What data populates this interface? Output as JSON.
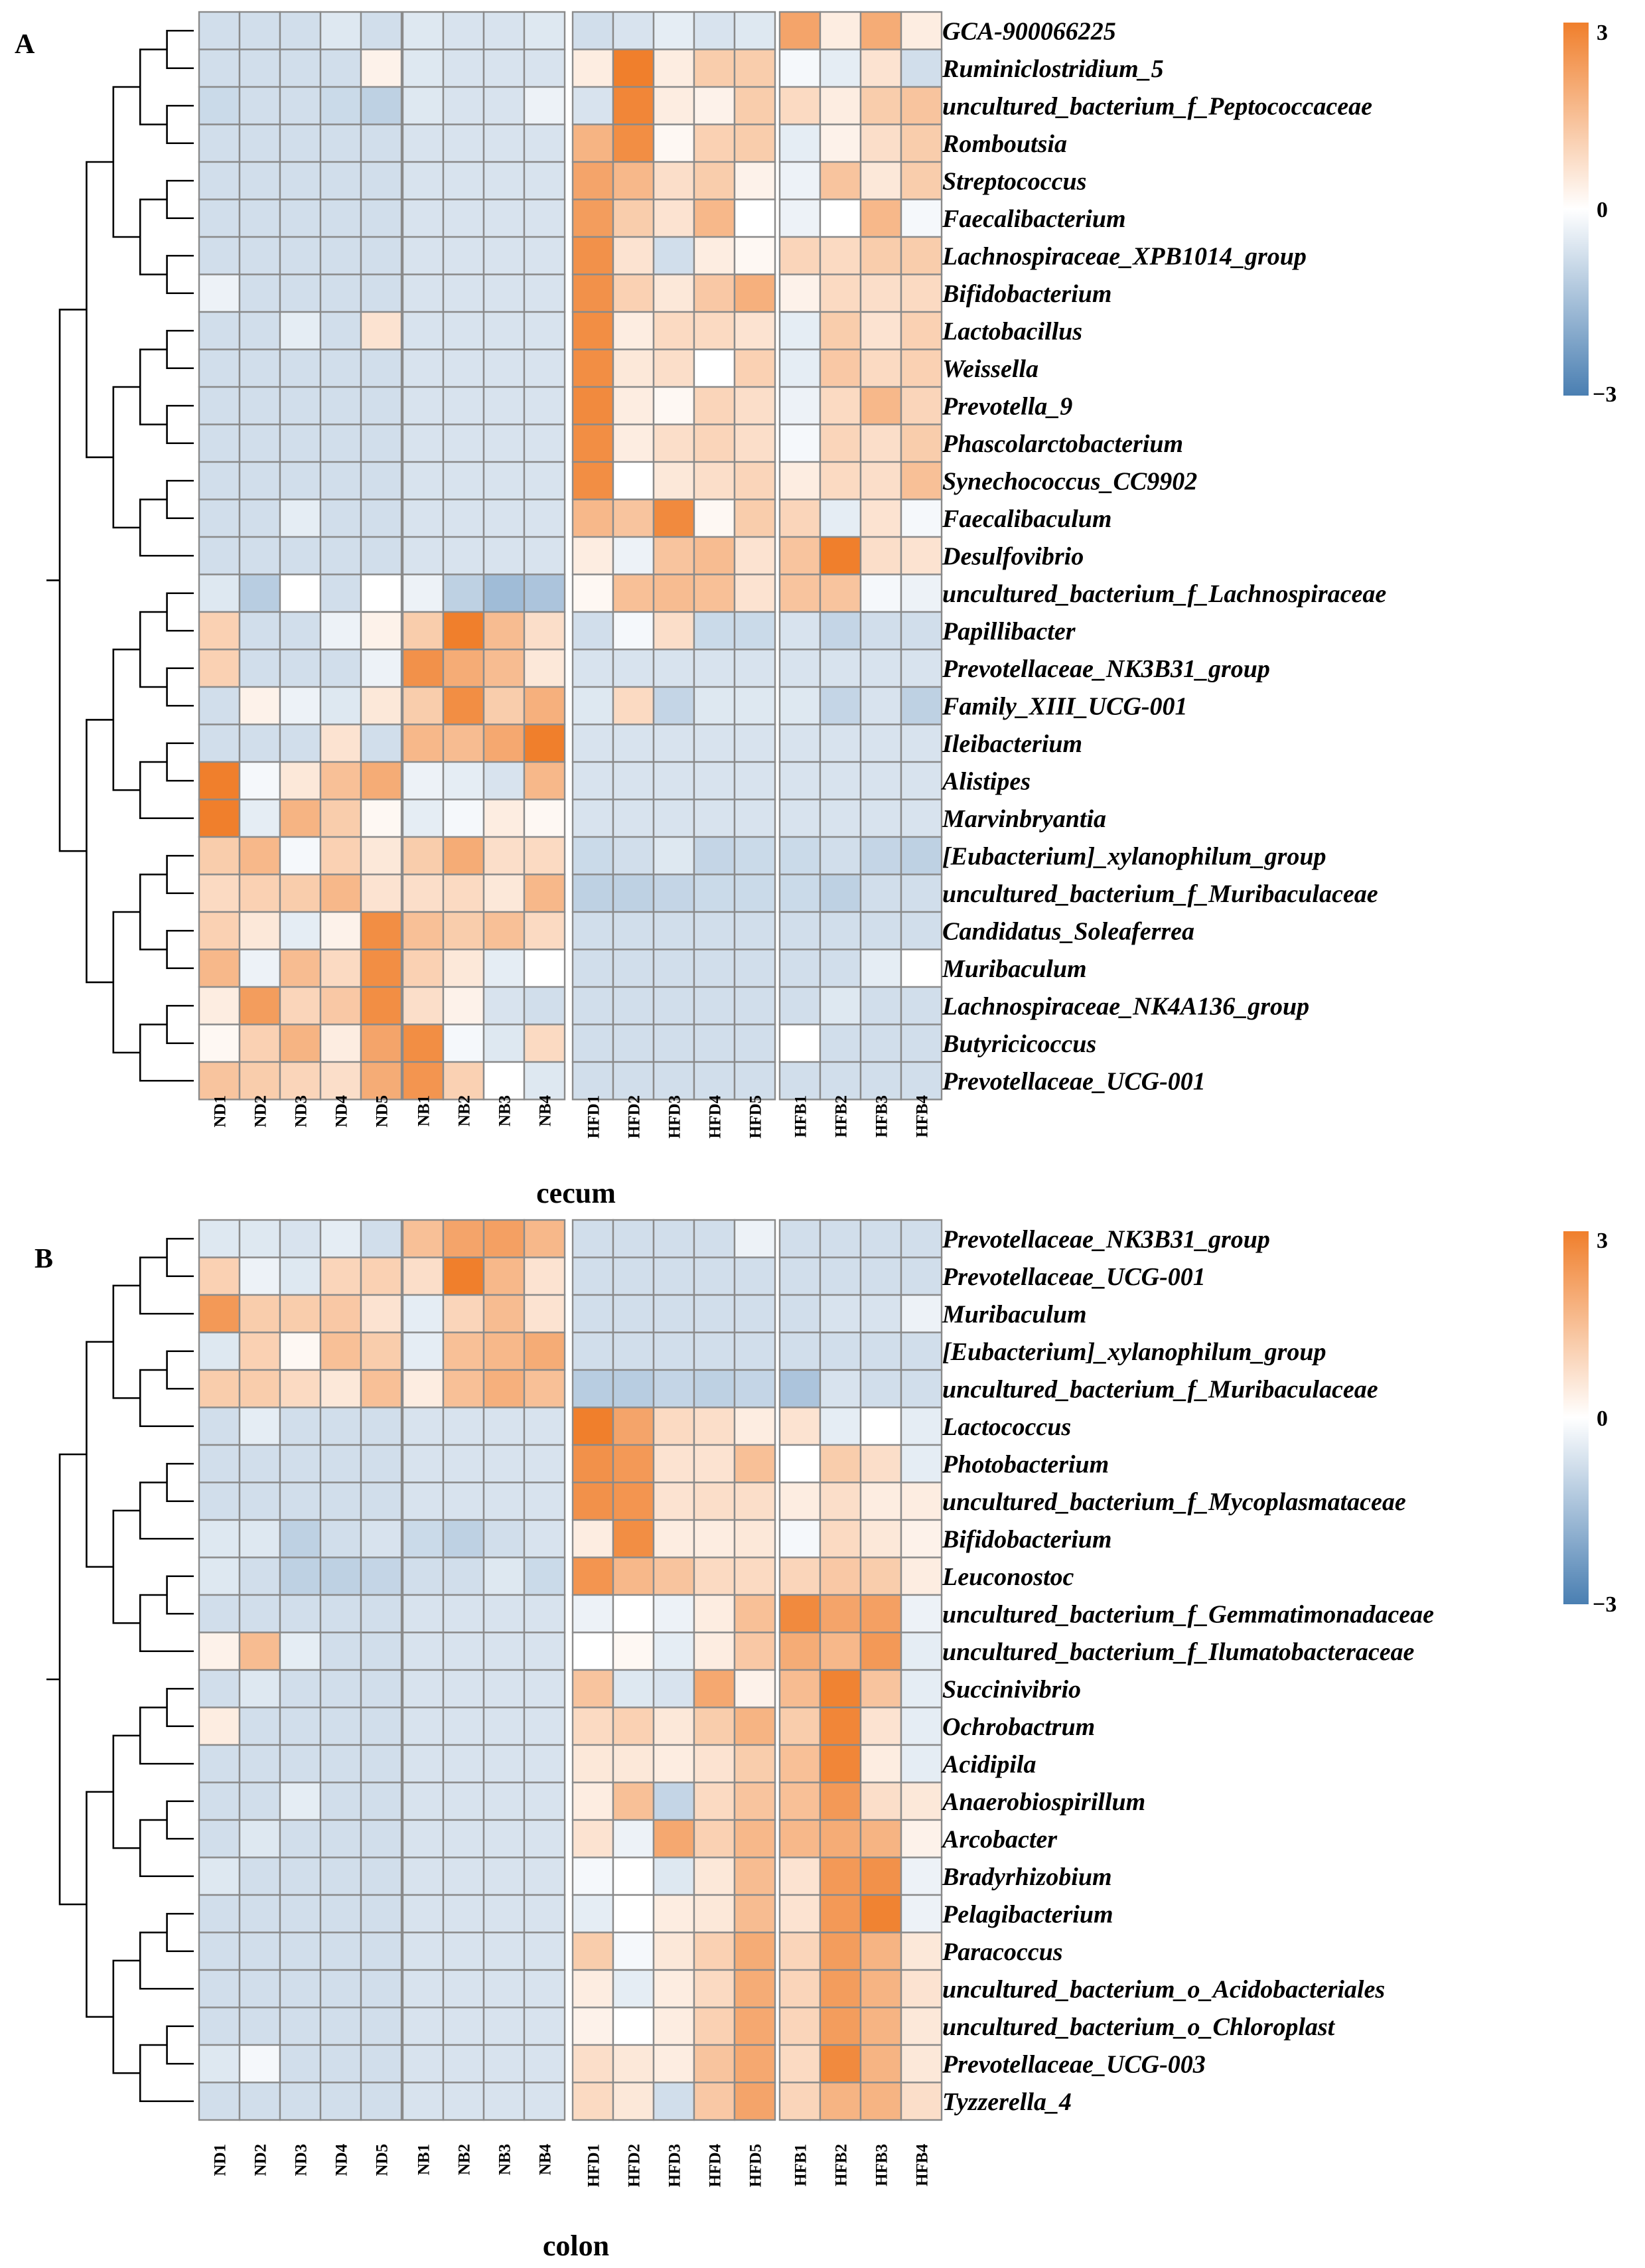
{
  "chart_data": [
    {
      "type": "heatmap",
      "panel": "A",
      "title": "cecum",
      "legend": {
        "max_label": "3",
        "mid_label": "0",
        "min_label": "−3",
        "range": [
          -3,
          3
        ]
      },
      "column_groups": [
        [
          "ND1",
          "ND2",
          "ND3",
          "ND4",
          "ND5"
        ],
        [
          "NB1",
          "NB2",
          "NB3",
          "NB4"
        ],
        [
          "HFD1",
          "HFD2",
          "HFD3",
          "HFD4",
          "HFD5"
        ],
        [
          "HFB1",
          "HFB2",
          "HFB3",
          "HFB4"
        ]
      ],
      "columns": [
        "ND1",
        "ND2",
        "ND3",
        "ND4",
        "ND5",
        "NB1",
        "NB2",
        "NB3",
        "NB4",
        "HFD1",
        "HFD2",
        "HFD3",
        "HFD4",
        "HFD5",
        "HFB1",
        "HFB2",
        "HFB3",
        "HFB4"
      ],
      "rows": [
        "GCA-900066225",
        "Ruminiclostridium_5",
        "uncultured_bacterium_f_Peptococcaceae",
        "Romboutsia",
        "Streptococcus",
        "Faecalibacterium",
        "Lachnospiraceae_XPB1014_group",
        "Bifidobacterium",
        "Lactobacillus",
        "Weissella",
        "Prevotella_9",
        "Phascolarctobacterium",
        "Synechococcus_CC9902",
        "Faecalibaculum",
        "Desulfovibrio",
        "uncultured_bacterium_f_Lachnospiraceae",
        "Papillibacter",
        "Prevotellaceae_NK3B31_group",
        "Family_XIII_UCG-001",
        "Ileibacterium",
        "Alistipes",
        "Marvinbryantia",
        "[Eubacterium]_xylanophilum_group",
        "uncultured_bacterium_f_Muribaculaceae",
        "Candidatus_Soleaferrea",
        "Muribaculum",
        "Lachnospiraceae_NK4A136_group",
        "Butyricicoccus",
        "Prevotellaceae_UCG-001"
      ],
      "values": [
        [
          -0.6,
          -0.6,
          -0.6,
          -0.4,
          -0.6,
          -0.4,
          -0.5,
          -0.5,
          -0.4,
          -0.6,
          -0.5,
          -0.3,
          -0.5,
          -0.4,
          2.0,
          0.3,
          1.8,
          0.3
        ],
        [
          -0.6,
          -0.6,
          -0.6,
          -0.6,
          0.2,
          -0.4,
          -0.5,
          -0.5,
          -0.5,
          0.3,
          3.0,
          0.3,
          1.0,
          1.0,
          -0.1,
          -0.3,
          0.5,
          -0.6
        ],
        [
          -0.7,
          -0.6,
          -0.6,
          -0.7,
          -0.9,
          -0.4,
          -0.5,
          -0.5,
          -0.2,
          -0.5,
          2.8,
          0.3,
          0.2,
          1.0,
          0.7,
          0.3,
          1.0,
          1.2
        ],
        [
          -0.6,
          -0.6,
          -0.6,
          -0.6,
          -0.6,
          -0.5,
          -0.5,
          -0.5,
          -0.5,
          1.6,
          2.6,
          0.1,
          0.9,
          1.0,
          -0.3,
          0.2,
          0.6,
          1.0
        ],
        [
          -0.6,
          -0.6,
          -0.6,
          -0.6,
          -0.6,
          -0.5,
          -0.5,
          -0.5,
          -0.5,
          2.0,
          1.5,
          0.6,
          1.0,
          0.2,
          -0.2,
          1.2,
          0.4,
          1.0
        ],
        [
          -0.6,
          -0.6,
          -0.6,
          -0.6,
          -0.6,
          -0.5,
          -0.5,
          -0.5,
          -0.5,
          2.2,
          1.0,
          0.5,
          1.5,
          0.0,
          -0.2,
          0.0,
          1.5,
          -0.1
        ],
        [
          -0.6,
          -0.6,
          -0.6,
          -0.6,
          -0.6,
          -0.5,
          -0.5,
          -0.5,
          -0.5,
          2.5,
          0.5,
          -0.6,
          0.3,
          0.1,
          0.8,
          0.7,
          1.0,
          1.0
        ],
        [
          -0.2,
          -0.6,
          -0.6,
          -0.6,
          -0.6,
          -0.5,
          -0.5,
          -0.5,
          -0.5,
          2.5,
          0.9,
          0.4,
          1.1,
          1.7,
          0.2,
          0.7,
          0.6,
          0.7
        ],
        [
          -0.6,
          -0.6,
          -0.3,
          -0.6,
          0.5,
          -0.5,
          -0.5,
          -0.5,
          -0.5,
          2.6,
          0.3,
          0.7,
          0.7,
          0.5,
          -0.3,
          1.0,
          0.5,
          0.9
        ],
        [
          -0.6,
          -0.6,
          -0.6,
          -0.6,
          -0.6,
          -0.5,
          -0.5,
          -0.5,
          -0.5,
          2.6,
          0.4,
          0.6,
          0.0,
          0.9,
          -0.3,
          1.1,
          0.7,
          0.9
        ],
        [
          -0.6,
          -0.6,
          -0.6,
          -0.6,
          -0.6,
          -0.5,
          -0.5,
          -0.5,
          -0.5,
          2.7,
          0.3,
          0.1,
          0.8,
          0.6,
          -0.2,
          0.7,
          1.5,
          0.8
        ],
        [
          -0.6,
          -0.6,
          -0.6,
          -0.6,
          -0.6,
          -0.5,
          -0.5,
          -0.5,
          -0.5,
          2.6,
          0.3,
          0.6,
          0.8,
          0.6,
          -0.1,
          0.8,
          0.6,
          1.0
        ],
        [
          -0.6,
          -0.6,
          -0.6,
          -0.6,
          -0.6,
          -0.5,
          -0.5,
          -0.5,
          -0.5,
          2.6,
          0.0,
          0.4,
          0.6,
          0.8,
          0.3,
          0.7,
          0.6,
          1.3
        ],
        [
          -0.6,
          -0.6,
          -0.3,
          -0.6,
          -0.6,
          -0.5,
          -0.5,
          -0.5,
          -0.5,
          1.5,
          1.2,
          2.7,
          0.1,
          1.0,
          0.8,
          -0.3,
          0.5,
          -0.1
        ],
        [
          -0.6,
          -0.6,
          -0.6,
          -0.6,
          -0.6,
          -0.5,
          -0.5,
          -0.5,
          -0.5,
          0.3,
          -0.2,
          1.2,
          1.4,
          0.5,
          1.2,
          3.0,
          0.6,
          0.5
        ],
        [
          -0.4,
          -1.0,
          0.0,
          -0.6,
          0.0,
          -0.2,
          -0.9,
          -1.4,
          -1.2,
          0.1,
          1.3,
          1.4,
          1.3,
          0.5,
          1.2,
          1.2,
          -0.1,
          -0.2
        ],
        [
          0.9,
          -0.6,
          -0.6,
          -0.2,
          0.2,
          1.0,
          3.0,
          1.4,
          0.6,
          -0.6,
          -0.1,
          0.6,
          -0.7,
          -0.7,
          -0.5,
          -0.8,
          -0.6,
          -0.6
        ],
        [
          0.9,
          -0.6,
          -0.6,
          -0.6,
          -0.2,
          2.5,
          1.8,
          1.4,
          0.4,
          -0.5,
          -0.5,
          -0.5,
          -0.5,
          -0.5,
          -0.5,
          -0.5,
          -0.5,
          -0.5
        ],
        [
          -0.6,
          0.2,
          -0.2,
          -0.4,
          0.4,
          1.0,
          2.6,
          1.0,
          1.7,
          -0.4,
          0.7,
          -0.8,
          -0.4,
          -0.4,
          -0.4,
          -0.8,
          -0.5,
          -0.9
        ],
        [
          -0.6,
          -0.6,
          -0.6,
          0.5,
          -0.6,
          1.5,
          1.4,
          1.9,
          3.0,
          -0.5,
          -0.5,
          -0.5,
          -0.5,
          -0.5,
          -0.5,
          -0.5,
          -0.5,
          -0.5
        ],
        [
          3.0,
          -0.1,
          0.4,
          1.3,
          1.8,
          -0.2,
          -0.3,
          -0.5,
          1.5,
          -0.5,
          -0.5,
          -0.5,
          -0.5,
          -0.5,
          -0.5,
          -0.5,
          -0.5,
          -0.5
        ],
        [
          3.0,
          -0.3,
          1.6,
          1.0,
          0.1,
          -0.3,
          -0.1,
          0.3,
          0.1,
          -0.5,
          -0.5,
          -0.5,
          -0.5,
          -0.5,
          -0.5,
          -0.5,
          -0.5,
          -0.5
        ],
        [
          1.0,
          1.5,
          -0.1,
          0.9,
          0.4,
          1.0,
          1.8,
          0.6,
          0.7,
          -0.7,
          -0.6,
          -0.4,
          -0.8,
          -0.7,
          -0.7,
          -0.6,
          -0.8,
          -0.9
        ],
        [
          0.7,
          0.9,
          1.0,
          1.5,
          0.5,
          0.6,
          0.7,
          0.4,
          1.5,
          -0.9,
          -0.9,
          -0.8,
          -0.7,
          -0.7,
          -0.7,
          -0.9,
          -0.6,
          -0.6
        ],
        [
          0.9,
          0.4,
          -0.3,
          0.2,
          2.6,
          1.3,
          1.0,
          1.3,
          0.7,
          -0.6,
          -0.6,
          -0.6,
          -0.6,
          -0.6,
          -0.6,
          -0.6,
          -0.6,
          -0.6
        ],
        [
          1.5,
          -0.2,
          1.4,
          0.7,
          2.6,
          0.9,
          0.4,
          -0.3,
          0.0,
          -0.6,
          -0.6,
          -0.6,
          -0.6,
          -0.6,
          -0.6,
          -0.6,
          -0.3,
          0.0
        ],
        [
          0.3,
          2.2,
          0.8,
          1.1,
          2.6,
          0.6,
          0.2,
          -0.5,
          -0.6,
          -0.6,
          -0.6,
          -0.6,
          -0.6,
          -0.6,
          -0.6,
          -0.4,
          -0.6,
          -0.6
        ],
        [
          0.1,
          0.9,
          1.6,
          0.3,
          2.0,
          2.6,
          -0.1,
          -0.4,
          0.7,
          -0.6,
          -0.6,
          -0.6,
          -0.6,
          -0.6,
          0.0,
          -0.6,
          -0.6,
          -0.6
        ],
        [
          1.2,
          1.0,
          0.8,
          0.6,
          1.8,
          2.4,
          0.9,
          0.0,
          -0.4,
          -0.6,
          -0.6,
          -0.6,
          -0.6,
          -0.6,
          -0.6,
          -0.6,
          -0.6,
          -0.6
        ]
      ]
    },
    {
      "type": "heatmap",
      "panel": "B",
      "title": "colon",
      "legend": {
        "max_label": "3",
        "mid_label": "0",
        "min_label": "−3",
        "range": [
          -3,
          3
        ]
      },
      "column_groups": [
        [
          "ND1",
          "ND2",
          "ND3",
          "ND4",
          "ND5"
        ],
        [
          "NB1",
          "NB2",
          "NB3",
          "NB4"
        ],
        [
          "HFD1",
          "HFD2",
          "HFD3",
          "HFD4",
          "HFD5"
        ],
        [
          "HFB1",
          "HFB2",
          "HFB3",
          "HFB4"
        ]
      ],
      "columns": [
        "ND1",
        "ND2",
        "ND3",
        "ND4",
        "ND5",
        "NB1",
        "NB2",
        "NB3",
        "NB4",
        "HFD1",
        "HFD2",
        "HFD3",
        "HFD4",
        "HFD5",
        "HFB1",
        "HFB2",
        "HFB3",
        "HFB4"
      ],
      "rows": [
        "Prevotellaceae_NK3B31_group",
        "Prevotellaceae_UCG-001",
        "Muribaculum",
        "[Eubacterium]_xylanophilum_group",
        "uncultured_bacterium_f_Muribaculaceae",
        "Lactococcus",
        "Photobacterium",
        "uncultured_bacterium_f_Mycoplasmataceae",
        "Bifidobacterium",
        "Leuconostoc",
        "uncultured_bacterium_f_Gemmatimonadaceae",
        "uncultured_bacterium_f_Ilumatobacteraceae",
        "Succinivibrio",
        "Ochrobactrum",
        "Acidipila",
        "Anaerobiospirillum",
        "Arcobacter",
        "Bradyrhizobium",
        "Pelagibacterium",
        "Paracoccus",
        "uncultured_bacterium_o_Acidobacteriales",
        "uncultured_bacterium_o_Chloroplast",
        "Prevotellaceae_UCG-003",
        "Tyzzerella_4"
      ],
      "values": [
        [
          -0.4,
          -0.4,
          -0.5,
          -0.3,
          -0.6,
          1.3,
          2.0,
          2.1,
          1.5,
          -0.6,
          -0.6,
          -0.6,
          -0.6,
          -0.2,
          -0.6,
          -0.6,
          -0.6,
          -0.6
        ],
        [
          0.9,
          -0.2,
          -0.4,
          0.8,
          0.9,
          0.6,
          3.0,
          1.5,
          0.5,
          -0.6,
          -0.6,
          -0.6,
          -0.6,
          -0.6,
          -0.6,
          -0.6,
          -0.6,
          -0.6
        ],
        [
          2.3,
          1.0,
          1.0,
          1.1,
          0.5,
          -0.3,
          0.8,
          1.4,
          0.5,
          -0.6,
          -0.6,
          -0.6,
          -0.6,
          -0.6,
          -0.6,
          -0.5,
          -0.5,
          -0.2
        ],
        [
          -0.4,
          0.9,
          0.1,
          1.3,
          1.0,
          -0.3,
          1.3,
          1.5,
          1.8,
          -0.6,
          -0.6,
          -0.6,
          -0.6,
          -0.6,
          -0.6,
          -0.6,
          -0.6,
          -0.6
        ],
        [
          1.0,
          1.0,
          0.7,
          0.4,
          1.3,
          0.3,
          1.3,
          1.7,
          1.3,
          -1.0,
          -1.0,
          -0.8,
          -0.9,
          -0.8,
          -1.2,
          -0.5,
          -0.6,
          -0.6
        ],
        [
          -0.6,
          -0.3,
          -0.6,
          -0.6,
          -0.6,
          -0.5,
          -0.5,
          -0.5,
          -0.5,
          3.0,
          2.0,
          0.7,
          0.6,
          0.3,
          0.5,
          -0.3,
          0.0,
          -0.3
        ],
        [
          -0.6,
          -0.6,
          -0.6,
          -0.6,
          -0.6,
          -0.5,
          -0.5,
          -0.5,
          -0.5,
          2.5,
          2.3,
          0.5,
          0.5,
          1.3,
          0.0,
          1.0,
          0.6,
          -0.3
        ],
        [
          -0.6,
          -0.6,
          -0.6,
          -0.6,
          -0.6,
          -0.5,
          -0.5,
          -0.5,
          -0.5,
          2.5,
          2.4,
          0.5,
          0.6,
          0.6,
          0.3,
          0.6,
          0.3,
          0.3
        ],
        [
          -0.4,
          -0.4,
          -0.9,
          -0.6,
          -0.5,
          -0.7,
          -0.9,
          -0.6,
          -0.5,
          0.3,
          2.6,
          0.3,
          0.3,
          0.4,
          -0.1,
          0.7,
          0.4,
          0.2
        ],
        [
          -0.4,
          -0.6,
          -0.9,
          -0.9,
          -0.8,
          -0.6,
          -0.6,
          -0.4,
          -0.7,
          2.4,
          1.5,
          1.2,
          0.7,
          0.7,
          0.8,
          1.1,
          1.0,
          0.3
        ],
        [
          -0.6,
          -0.6,
          -0.6,
          -0.6,
          -0.6,
          -0.5,
          -0.5,
          -0.5,
          -0.5,
          -0.2,
          0.0,
          -0.2,
          0.3,
          1.3,
          2.7,
          2.0,
          2.1,
          -0.2
        ],
        [
          0.2,
          1.4,
          -0.3,
          -0.6,
          -0.6,
          -0.5,
          -0.5,
          -0.5,
          -0.5,
          0.0,
          0.1,
          -0.3,
          0.3,
          1.1,
          1.8,
          1.5,
          2.3,
          -0.3
        ],
        [
          -0.6,
          -0.4,
          -0.6,
          -0.6,
          -0.6,
          -0.5,
          -0.5,
          -0.5,
          -0.5,
          1.2,
          -0.4,
          -0.5,
          1.9,
          0.2,
          1.4,
          2.9,
          1.2,
          -0.3
        ],
        [
          0.3,
          -0.6,
          -0.6,
          -0.6,
          -0.6,
          -0.5,
          -0.5,
          -0.5,
          -0.5,
          0.7,
          0.9,
          0.4,
          1.0,
          1.6,
          1.0,
          2.8,
          0.5,
          -0.3
        ],
        [
          -0.6,
          -0.6,
          -0.6,
          -0.6,
          -0.6,
          -0.5,
          -0.5,
          -0.5,
          -0.5,
          0.4,
          0.4,
          0.3,
          0.5,
          1.0,
          1.3,
          2.8,
          0.3,
          -0.3
        ],
        [
          -0.6,
          -0.6,
          -0.3,
          -0.6,
          -0.6,
          -0.5,
          -0.5,
          -0.5,
          -0.5,
          0.3,
          1.3,
          -0.8,
          0.7,
          1.2,
          1.3,
          2.3,
          0.6,
          0.4
        ],
        [
          -0.6,
          -0.4,
          -0.6,
          -0.6,
          -0.6,
          -0.5,
          -0.5,
          -0.5,
          -0.5,
          0.5,
          -0.2,
          1.9,
          0.9,
          1.5,
          1.5,
          1.8,
          1.6,
          0.2
        ],
        [
          -0.4,
          -0.6,
          -0.6,
          -0.6,
          -0.6,
          -0.5,
          -0.5,
          -0.5,
          -0.5,
          -0.1,
          0.0,
          -0.4,
          0.4,
          1.4,
          0.5,
          2.3,
          2.5,
          -0.2
        ],
        [
          -0.6,
          -0.6,
          -0.6,
          -0.6,
          -0.6,
          -0.5,
          -0.5,
          -0.5,
          -0.5,
          -0.3,
          0.0,
          0.3,
          0.4,
          1.4,
          0.5,
          2.3,
          2.9,
          -0.2
        ],
        [
          -0.6,
          -0.6,
          -0.6,
          -0.6,
          -0.6,
          -0.5,
          -0.5,
          -0.5,
          -0.5,
          1.0,
          -0.1,
          0.4,
          0.9,
          1.8,
          0.8,
          2.2,
          1.6,
          0.4
        ],
        [
          -0.6,
          -0.6,
          -0.6,
          -0.6,
          -0.6,
          -0.5,
          -0.5,
          -0.5,
          -0.5,
          0.3,
          -0.3,
          0.3,
          0.7,
          1.8,
          0.8,
          2.2,
          1.6,
          0.5
        ],
        [
          -0.6,
          -0.6,
          -0.6,
          -0.6,
          -0.6,
          -0.5,
          -0.5,
          -0.5,
          -0.5,
          0.2,
          0.0,
          0.3,
          0.9,
          1.9,
          0.8,
          2.2,
          1.6,
          0.4
        ],
        [
          -0.4,
          -0.1,
          -0.6,
          -0.6,
          -0.6,
          -0.5,
          -0.5,
          -0.5,
          -0.5,
          0.6,
          0.4,
          0.3,
          1.2,
          1.9,
          0.7,
          2.7,
          1.6,
          0.4
        ],
        [
          -0.6,
          -0.6,
          -0.6,
          -0.6,
          -0.6,
          -0.5,
          -0.5,
          -0.5,
          -0.5,
          0.7,
          0.4,
          -0.6,
          1.1,
          2.0,
          0.8,
          1.6,
          1.6,
          0.6
        ]
      ]
    }
  ]
}
